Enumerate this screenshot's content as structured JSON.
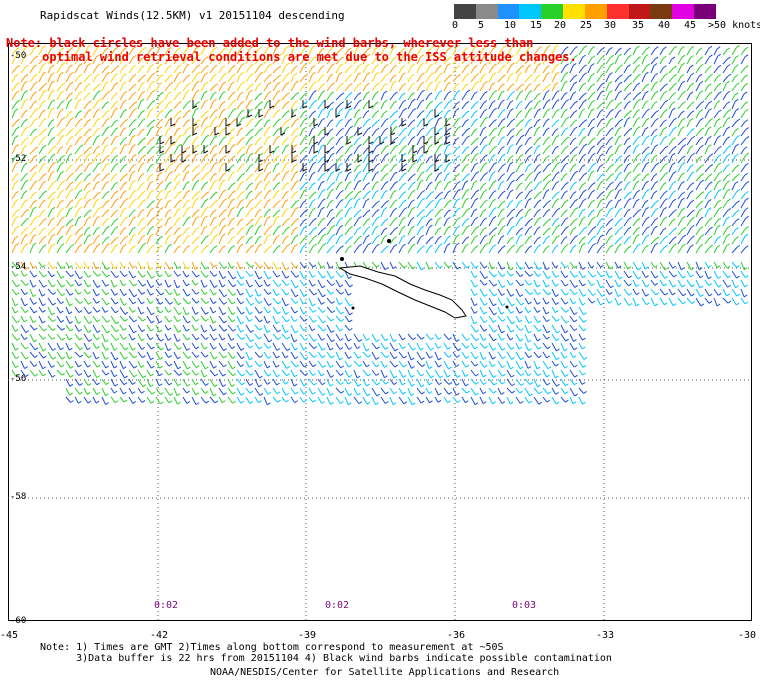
{
  "title": "Rapidscat Winds(12.5KM) v1 20151104 descending",
  "note_lines": [
    "Note: black circles have been added to the wind barbs, wherever less than",
    "     optimal wind retrieval conditions are met due to the ISS attitude changes."
  ],
  "legend": {
    "labels": [
      "0",
      "5",
      "10",
      "15",
      "20",
      "25",
      "30",
      "35",
      "40",
      "45",
      ">50 knots"
    ],
    "colors": [
      "#444444",
      "#8a8a8a",
      "#1e90ff",
      "#00c8ff",
      "#2ad02a",
      "#ffe000",
      "#ffa000",
      "#ff3030",
      "#c01818",
      "#7a3a10",
      "#e000e0",
      "#7a007a"
    ]
  },
  "lat_labels": [
    "-50",
    "-52",
    "-54",
    "-56",
    "-58",
    "-60"
  ],
  "lon_labels": [
    "-45",
    "-42",
    "-39",
    "-36",
    "-33",
    "-30"
  ],
  "time_labels": [
    "0:02",
    "0:02",
    "0:03"
  ],
  "footer": {
    "line1": "Note: 1) Times are GMT 2)Times along bottom correspond to measurement at ~50S",
    "line2": "      3)Data buffer is 22 hrs from 20151104 4) Black wind barbs indicate possible contamination",
    "line3": "NOAA/NESDIS/Center for Satellite Applications and Research"
  }
}
